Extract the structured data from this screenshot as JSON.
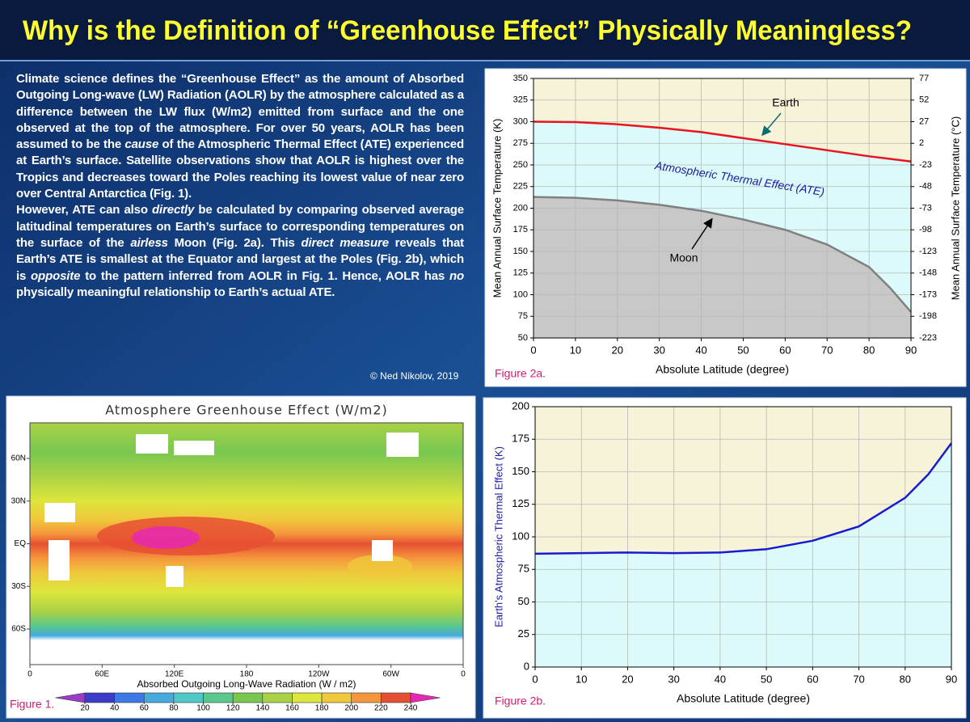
{
  "title": "Why is the Definition of “Greenhouse Effect” Physically Meaningless?",
  "body": {
    "paragraphs": [
      [
        "Climate science defines the “Greenhouse Effect” as the amount of Absorbed Outgoing Long-wave (LW) Radiation (AOLR) by the atmosphere calculated as a difference between the LW flux (W/m2) emitted from surface and the one observed at the top of the atmosphere. For over 50 years, AOLR has been assumed to be the ",
        "cause",
        " of the Atmospheric Thermal Effect (ATE) experienced at Earth’s surface. Satellite observations show that AOLR is highest over the Tropics and decreases toward the Poles reaching its lowest value of near zero over Central Antarctica (Fig. 1)."
      ],
      [
        "However, ATE can also ",
        "directly",
        " be calculated by comparing observed average latitudinal temperatures on Earth’s surface to corresponding temperatures on the surface of the ",
        "airless",
        " Moon (Fig. 2a).  This ",
        "direct measure",
        " reveals that Earth’s ATE is smallest at the Equator and largest at the Poles (Fig. 2b), which is ",
        "opposite",
        " to the pattern inferred from AOLR in Fig. 1. Hence, AOLR has ",
        "no",
        " physically meaningful relationship to Earth’s actual ATE."
      ]
    ],
    "credit": "© Ned Nikolov, 2019"
  },
  "chart_data": [
    {
      "type": "line",
      "x": [
        0,
        10,
        20,
        30,
        40,
        50,
        60,
        70,
        80,
        85,
        90
      ],
      "series": [
        {
          "name": "Earth",
          "color": "#e8141e",
          "area_color": "#dcfafa",
          "values": [
            300,
            299.5,
            297,
            293,
            288,
            281,
            274,
            267,
            260,
            257,
            254
          ]
        },
        {
          "name": "Moon",
          "color": "#808080",
          "area_color": "#c8c8c8",
          "values": [
            213,
            212,
            209,
            204,
            197,
            187,
            175,
            158,
            132,
            108,
            80
          ]
        }
      ],
      "background": "#f7f3d8",
      "grid": true,
      "xlim": [
        0,
        90
      ],
      "xticks": [
        0,
        10,
        20,
        30,
        40,
        50,
        60,
        70,
        80,
        90
      ],
      "ylim": [
        50,
        350
      ],
      "yticks": [
        50,
        75,
        100,
        125,
        150,
        175,
        200,
        225,
        250,
        275,
        300,
        325,
        350
      ],
      "y2lim": [
        -223,
        77
      ],
      "y2ticks": [
        77,
        52,
        27,
        2,
        -23,
        -48,
        -73,
        -98,
        -123,
        -148,
        -173,
        -198,
        -223
      ],
      "xlabel": "Absolute Latitude (degree)",
      "ylabel": "Mean Annual Surface Temperature (K)",
      "y2label": "Mean Annual Surface Temperature (°C)",
      "annotations": [
        "Atmospheric Thermal Effect (ATE)"
      ],
      "figure_label": "Figure 2a."
    },
    {
      "type": "map",
      "title": "Atmosphere Greenhouse Effect (W/m2)",
      "xlim": [
        0,
        360
      ],
      "xticks": [
        0,
        {
          "value": 60,
          "label": "60E"
        },
        {
          "value": 120,
          "label": "120E"
        },
        180,
        {
          "value": 240,
          "label": "120W"
        },
        {
          "value": 300,
          "label": "60W"
        },
        {
          "value": 360,
          "label": "0"
        }
      ],
      "ylim": [
        -85,
        85
      ],
      "yticks": [
        {
          "value": 60,
          "label": "60N"
        },
        {
          "value": 30,
          "label": "30N"
        },
        {
          "value": 0,
          "label": "EQ"
        },
        {
          "value": -30,
          "label": "30S"
        },
        {
          "value": -60,
          "label": "60S"
        }
      ],
      "xlabel": "Absorbed Outgoing Long-Wave Radiation (W / m2)",
      "colorbar": {
        "ticks": [
          20,
          40,
          60,
          80,
          100,
          120,
          140,
          160,
          180,
          200,
          220,
          240
        ],
        "colors": [
          "#9a3cc8",
          "#3c3cc8",
          "#3c78e6",
          "#46aadc",
          "#50c8c8",
          "#5ac88c",
          "#78c850",
          "#aad246",
          "#dce63c",
          "#f0c83c",
          "#f5963c",
          "#e65032",
          "#e628b4"
        ]
      },
      "figure_label": "Figure 1."
    },
    {
      "type": "line",
      "x": [
        0,
        10,
        20,
        30,
        40,
        50,
        60,
        70,
        80,
        85,
        90
      ],
      "series": [
        {
          "color": "#1a1ad0",
          "area_color": "#dcfafa",
          "values": [
            87,
            87.5,
            88,
            87.5,
            88,
            90.5,
            97,
            108,
            130,
            148,
            172
          ]
        }
      ],
      "background": "#f7f3d8",
      "grid": true,
      "xlim": [
        0,
        90
      ],
      "xticks": [
        0,
        10,
        20,
        30,
        40,
        50,
        60,
        70,
        80,
        90
      ],
      "ylim": [
        0,
        200
      ],
      "yticks": [
        0,
        25,
        50,
        75,
        100,
        125,
        150,
        175,
        200
      ],
      "xlabel": "Absolute Latitude (degree)",
      "ylabel": "Earth's Atmospheric Thermal Effect (K)",
      "figure_label": "Figure 2b."
    }
  ]
}
